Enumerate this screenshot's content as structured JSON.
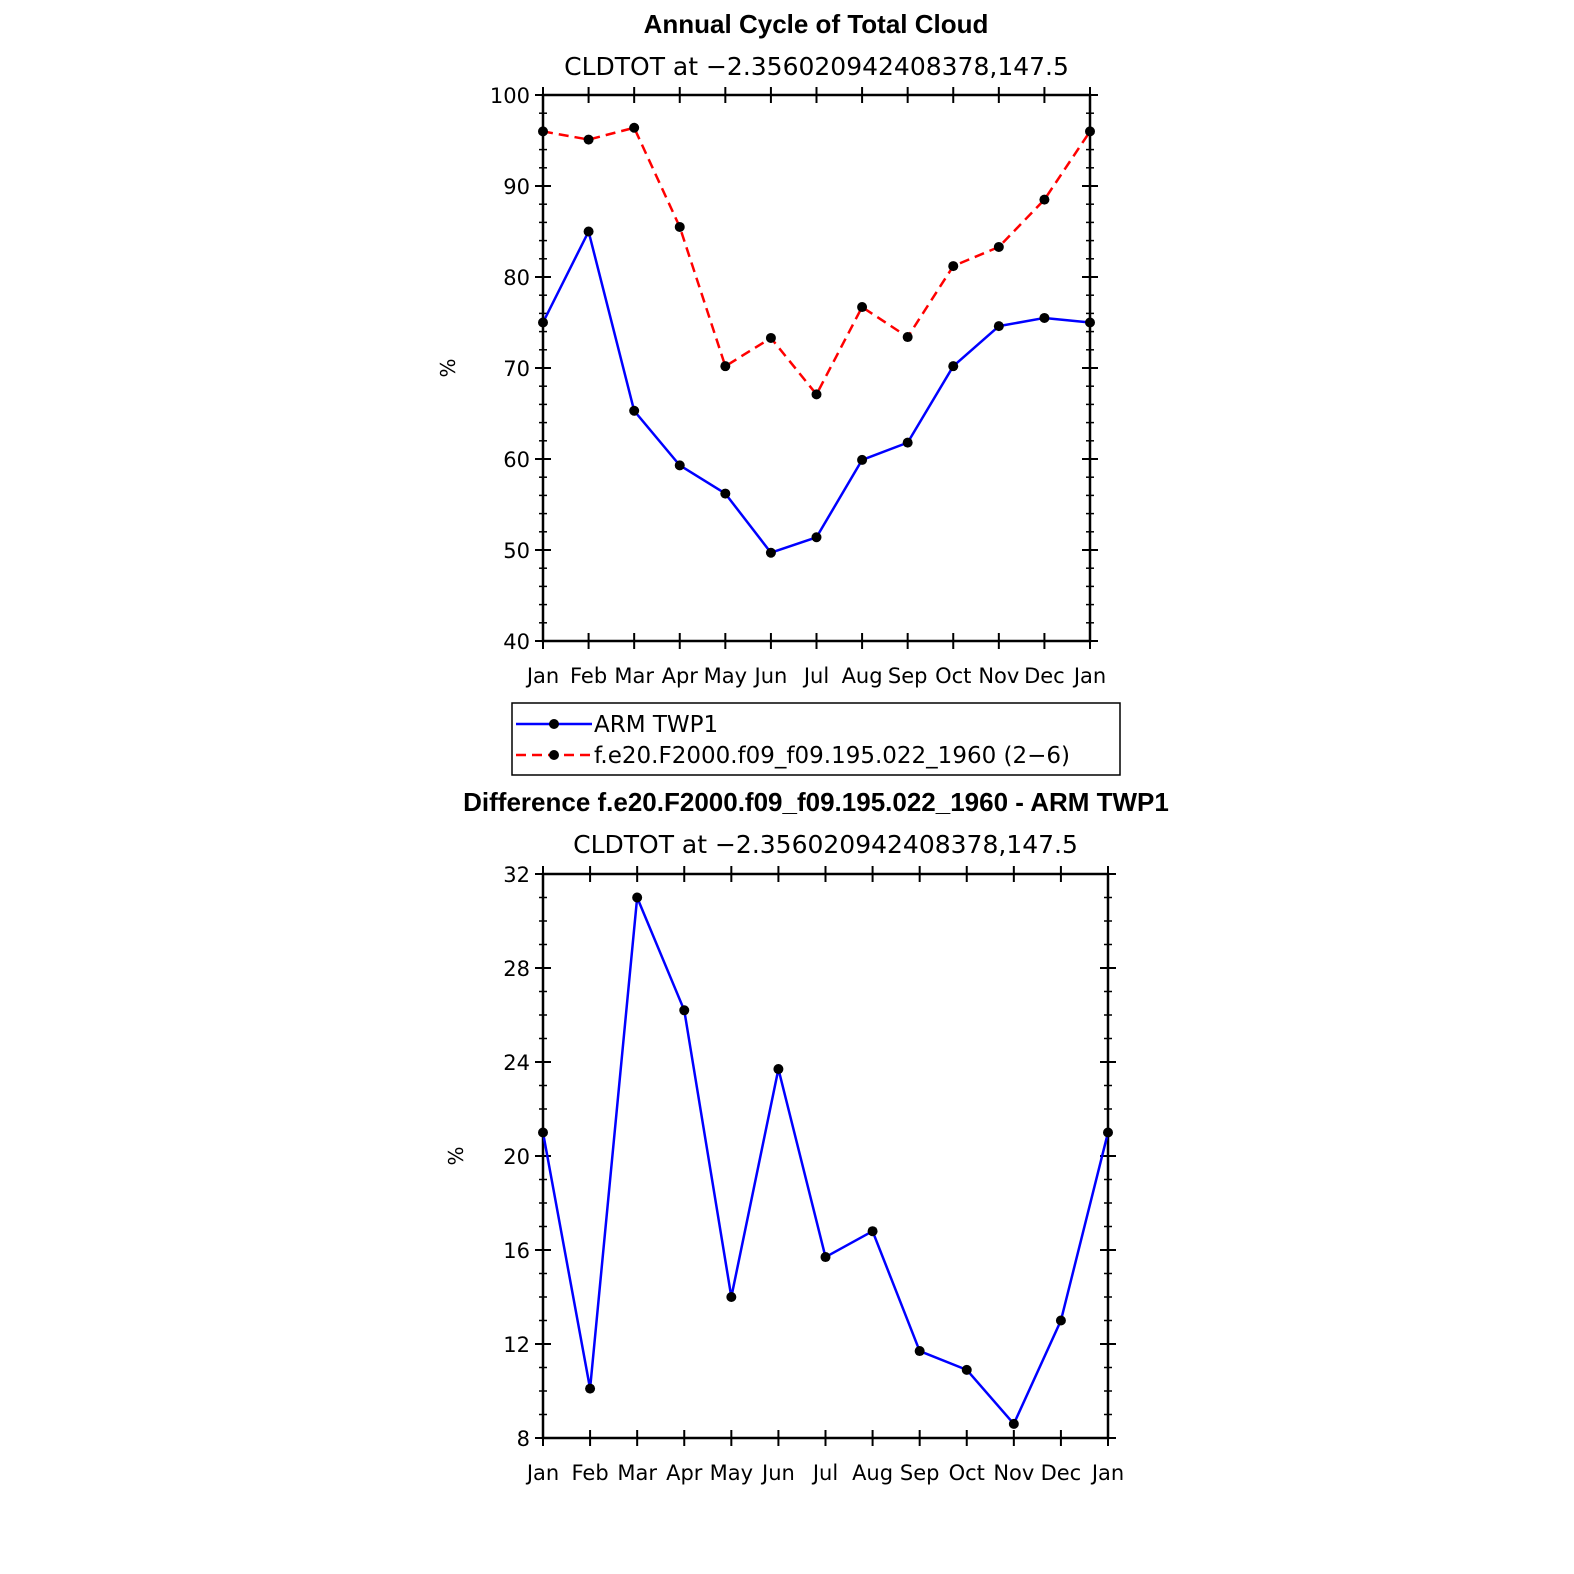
{
  "chart_data": [
    {
      "type": "line",
      "title": "Annual Cycle of Total Cloud",
      "subtitle": "CLDTOT at −2.356020942408378,147.5",
      "xlabel": "",
      "ylabel": "%",
      "categories": [
        "Jan",
        "Feb",
        "Mar",
        "Apr",
        "May",
        "Jun",
        "Jul",
        "Aug",
        "Sep",
        "Oct",
        "Nov",
        "Dec",
        "Jan"
      ],
      "ylim": [
        40,
        100
      ],
      "yticks": [
        40,
        50,
        60,
        70,
        80,
        90,
        100
      ],
      "series": [
        {
          "name": "ARM TWP1",
          "color": "#0000ff",
          "dash": "solid",
          "values": [
            75.0,
            85.0,
            65.3,
            59.3,
            56.2,
            49.7,
            51.4,
            59.9,
            61.8,
            70.2,
            74.6,
            75.5,
            75.0
          ]
        },
        {
          "name": "f.e20.F2000.f09_f09.195.022_1960 (2−6)",
          "color": "#ff0000",
          "dash": "dashed",
          "values": [
            96.0,
            95.1,
            96.4,
            85.5,
            70.2,
            73.3,
            67.1,
            76.7,
            73.4,
            81.2,
            83.3,
            88.5,
            96.0
          ]
        }
      ],
      "legend": {
        "position": "bottom"
      }
    },
    {
      "type": "line",
      "title": "Difference f.e20.F2000.f09_f09.195.022_1960 - ARM TWP1",
      "subtitle": "CLDTOT at −2.356020942408378,147.5",
      "xlabel": "",
      "ylabel": "%",
      "categories": [
        "Jan",
        "Feb",
        "Mar",
        "Apr",
        "May",
        "Jun",
        "Jul",
        "Aug",
        "Sep",
        "Oct",
        "Nov",
        "Dec",
        "Jan"
      ],
      "ylim": [
        8,
        32
      ],
      "yticks": [
        8,
        12,
        16,
        20,
        24,
        28,
        32
      ],
      "series": [
        {
          "name": "Difference",
          "color": "#0000ff",
          "dash": "solid",
          "values": [
            21.0,
            10.1,
            31.0,
            26.2,
            14.0,
            23.7,
            15.7,
            16.8,
            11.7,
            10.9,
            8.6,
            13.0,
            21.0
          ]
        }
      ]
    }
  ]
}
